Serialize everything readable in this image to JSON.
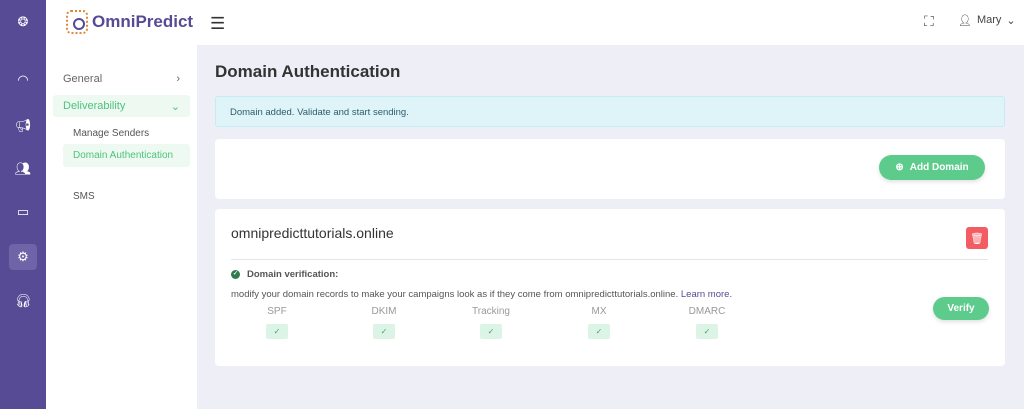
{
  "brand": {
    "name": "OmniPredict"
  },
  "rail": {
    "icons": [
      "logo-icon",
      "dashboard-icon",
      "campaign-icon",
      "contacts-icon",
      "monitor-icon",
      "settings-icon",
      "support-icon"
    ],
    "active": "settings-icon"
  },
  "header": {
    "user": "Mary",
    "user_chevron": "⌄",
    "fullscreen": "⛶",
    "menu": "☰"
  },
  "subnav": {
    "general": "General",
    "general_chevron": "›",
    "deliverability": "Deliverability",
    "deliverability_chevron": "⌄",
    "items": [
      "Manage Senders",
      "Domain Authentication",
      "SMS"
    ],
    "active": "Domain Authentication"
  },
  "page": {
    "title": "Domain Authentication",
    "alert": "Domain added. Validate and start sending.",
    "add_domain": "Add Domain"
  },
  "domain": {
    "name": "omnipredicttutorials.online",
    "verification_label": "Domain verification:",
    "description": "modify your domain records to make your campaigns look as if they come from omnipredicttutorials.online.",
    "learn_more": "Learn more.",
    "verify": "Verify",
    "records": [
      {
        "name": "SPF",
        "status": "✓"
      },
      {
        "name": "DKIM",
        "status": "✓"
      },
      {
        "name": "Tracking",
        "status": "✓"
      },
      {
        "name": "MX",
        "status": "✓"
      },
      {
        "name": "DMARC",
        "status": "✓"
      }
    ]
  },
  "colors": {
    "rail": "#564b94",
    "accent": "#5ccb8b",
    "danger": "#f25c62",
    "alert_bg": "#dff4f9"
  }
}
